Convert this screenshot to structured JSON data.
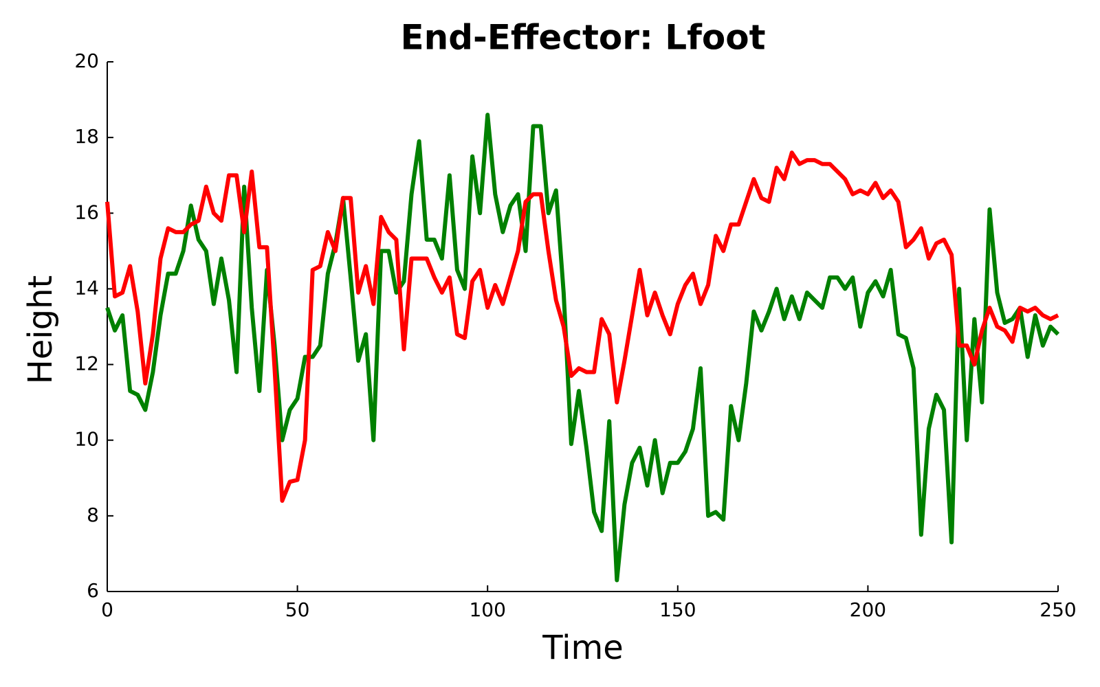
{
  "chart_data": {
    "type": "line",
    "title": "End-Effector: Lfoot",
    "xlabel": "Time",
    "ylabel": "Height",
    "x": [
      0,
      2,
      4,
      6,
      8,
      10,
      12,
      14,
      16,
      18,
      20,
      22,
      24,
      26,
      28,
      30,
      32,
      34,
      36,
      38,
      40,
      42,
      44,
      46,
      48,
      50,
      52,
      54,
      56,
      58,
      60,
      62,
      64,
      66,
      68,
      70,
      72,
      74,
      76,
      78,
      80,
      82,
      84,
      86,
      88,
      90,
      92,
      94,
      96,
      98,
      100,
      102,
      104,
      106,
      108,
      110,
      112,
      114,
      116,
      118,
      120,
      122,
      124,
      126,
      128,
      130,
      132,
      134,
      136,
      138,
      140,
      142,
      144,
      146,
      148,
      150,
      152,
      154,
      156,
      158,
      160,
      162,
      164,
      166,
      168,
      170,
      172,
      174,
      176,
      178,
      180,
      182,
      184,
      186,
      188,
      190,
      192,
      194,
      196,
      198,
      200,
      202,
      204,
      206,
      208,
      210,
      212,
      214,
      216,
      218,
      220,
      222,
      224,
      226,
      228,
      230,
      232,
      234,
      236,
      238,
      240,
      242,
      244,
      246,
      248,
      250
    ],
    "series": [
      {
        "color": "#008000",
        "values": [
          13.5,
          12.9,
          13.3,
          11.3,
          11.2,
          10.8,
          11.8,
          13.3,
          14.4,
          14.4,
          15.0,
          16.2,
          15.3,
          15.0,
          13.6,
          14.8,
          13.7,
          11.8,
          16.7,
          13.5,
          11.3,
          14.5,
          12.5,
          10.0,
          10.8,
          11.1,
          12.2,
          12.2,
          12.5,
          14.4,
          15.2,
          16.4,
          14.3,
          12.1,
          12.8,
          10.0,
          15.0,
          15.0,
          13.9,
          14.2,
          16.5,
          17.9,
          15.3,
          15.3,
          14.8,
          17.0,
          14.5,
          14.0,
          17.5,
          16.0,
          18.6,
          16.5,
          15.5,
          16.2,
          16.5,
          15.0,
          18.3,
          18.3,
          16.0,
          16.6,
          13.9,
          9.9,
          11.3,
          9.8,
          8.1,
          7.6,
          10.5,
          6.3,
          8.3,
          9.4,
          9.8,
          8.8,
          10.0,
          8.6,
          9.4,
          9.4,
          9.7,
          10.3,
          11.9,
          8.0,
          8.1,
          7.9,
          10.9,
          10.0,
          11.5,
          13.4,
          12.9,
          13.4,
          14.0,
          13.2,
          13.8,
          13.2,
          13.9,
          13.7,
          13.5,
          14.3,
          14.3,
          14.0,
          14.3,
          13.0,
          13.9,
          14.2,
          13.8,
          14.5,
          12.8,
          12.7,
          11.9,
          7.5,
          10.3,
          11.2,
          10.8,
          7.3,
          14.0,
          10.0,
          13.2,
          11.0,
          16.1,
          13.9,
          13.1,
          13.2,
          13.5,
          12.2,
          13.3,
          12.5,
          13.0,
          12.8
        ]
      },
      {
        "color": "#ff0000",
        "values": [
          16.3,
          13.8,
          13.9,
          14.6,
          13.4,
          11.5,
          12.8,
          14.8,
          15.6,
          15.5,
          15.5,
          15.7,
          15.8,
          16.7,
          16.0,
          15.8,
          17.0,
          17.0,
          15.5,
          17.1,
          15.1,
          15.1,
          11.9,
          8.4,
          8.9,
          8.95,
          10.0,
          14.5,
          14.6,
          15.5,
          15.0,
          16.4,
          16.4,
          13.9,
          14.6,
          13.6,
          15.9,
          15.5,
          15.3,
          12.4,
          14.8,
          14.8,
          14.8,
          14.3,
          13.9,
          14.3,
          12.8,
          12.7,
          14.2,
          14.5,
          13.5,
          14.1,
          13.6,
          14.3,
          15.0,
          16.3,
          16.5,
          16.5,
          15.0,
          13.7,
          13.0,
          11.7,
          11.9,
          11.8,
          11.8,
          13.2,
          12.8,
          11.0,
          12.1,
          13.3,
          14.5,
          13.3,
          13.9,
          13.3,
          12.8,
          13.6,
          14.1,
          14.4,
          13.6,
          14.1,
          15.4,
          15.0,
          15.7,
          15.7,
          16.3,
          16.9,
          16.4,
          16.3,
          17.2,
          16.9,
          17.6,
          17.3,
          17.4,
          17.4,
          17.3,
          17.3,
          17.1,
          16.9,
          16.5,
          16.6,
          16.5,
          16.8,
          16.4,
          16.6,
          16.3,
          15.1,
          15.3,
          15.6,
          14.8,
          15.2,
          15.3,
          14.9,
          12.5,
          12.5,
          12.0,
          12.9,
          13.5,
          13.0,
          12.9,
          12.6,
          13.5,
          13.4,
          13.5,
          13.3,
          13.2,
          13.3
        ]
      }
    ],
    "xlim": [
      0,
      250
    ],
    "xticks": [
      0,
      50,
      100,
      150,
      200,
      250
    ],
    "ylim": [
      6,
      20
    ],
    "yticks": [
      6,
      8,
      10,
      12,
      14,
      16,
      18,
      20
    ]
  }
}
